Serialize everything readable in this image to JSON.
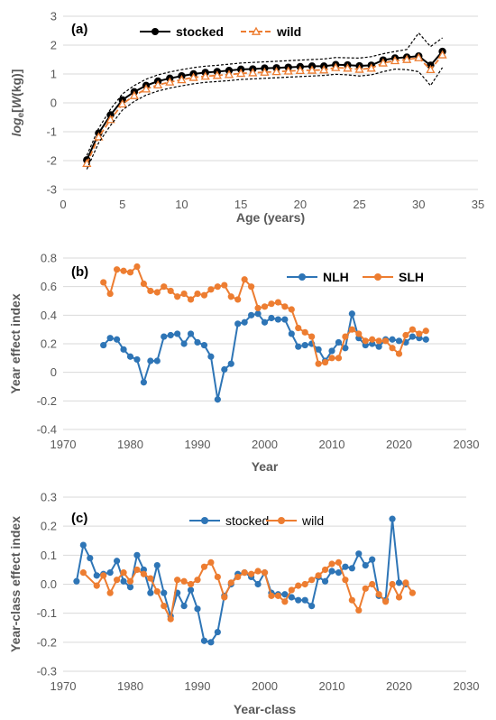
{
  "chart_data": [
    {
      "id": "a",
      "type": "line",
      "panel_label": "(a)",
      "xlabel": "Age (years)",
      "ylabel_parts": [
        "log",
        "e",
        "[",
        "W",
        "(kg)]"
      ],
      "xlim": [
        0,
        35
      ],
      "ylim": [
        -3,
        3
      ],
      "xticks": [
        0,
        5,
        10,
        15,
        20,
        25,
        30,
        35
      ],
      "yticks": [
        -3,
        -2,
        -1,
        0,
        1,
        2,
        3
      ],
      "legend_position": "top-center",
      "colors": {
        "stocked": "#000000",
        "wild": "#ED7D31",
        "band": "#000000"
      },
      "x": [
        2,
        3,
        4,
        5,
        6,
        7,
        8,
        9,
        10,
        11,
        12,
        13,
        14,
        15,
        16,
        17,
        18,
        19,
        20,
        21,
        22,
        23,
        24,
        25,
        26,
        27,
        28,
        29,
        30,
        31,
        32
      ],
      "series": [
        {
          "name": "stocked",
          "marker": "circle",
          "line": "solid",
          "values": [
            -1.98,
            -1.05,
            -0.42,
            0.1,
            0.38,
            0.6,
            0.75,
            0.85,
            0.93,
            1.0,
            1.05,
            1.08,
            1.12,
            1.16,
            1.17,
            1.2,
            1.21,
            1.23,
            1.25,
            1.27,
            1.27,
            1.32,
            1.31,
            1.28,
            1.3,
            1.48,
            1.55,
            1.58,
            1.62,
            1.3,
            1.78
          ]
        },
        {
          "name": "wild",
          "marker": "triangle",
          "line": "dashed",
          "values": [
            -2.1,
            -1.18,
            -0.58,
            -0.04,
            0.25,
            0.48,
            0.62,
            0.72,
            0.8,
            0.88,
            0.92,
            0.95,
            0.98,
            1.02,
            1.04,
            1.06,
            1.08,
            1.1,
            1.12,
            1.13,
            1.14,
            1.22,
            1.2,
            1.16,
            1.2,
            1.38,
            1.46,
            1.5,
            1.56,
            1.15,
            1.66
          ]
        },
        {
          "name": "upper band",
          "line": "dashed-thin",
          "values": [
            -1.82,
            -0.88,
            -0.22,
            0.31,
            0.6,
            0.82,
            0.97,
            1.07,
            1.15,
            1.22,
            1.27,
            1.3,
            1.34,
            1.38,
            1.4,
            1.42,
            1.44,
            1.46,
            1.48,
            1.5,
            1.52,
            1.57,
            1.56,
            1.55,
            1.6,
            1.7,
            1.78,
            1.85,
            2.42,
            1.95,
            2.25
          ]
        },
        {
          "name": "lower band",
          "line": "dashed-thin",
          "values": [
            -2.3,
            -1.38,
            -0.78,
            -0.25,
            0.05,
            0.27,
            0.41,
            0.51,
            0.59,
            0.66,
            0.71,
            0.74,
            0.77,
            0.81,
            0.83,
            0.85,
            0.87,
            0.89,
            0.91,
            0.93,
            0.95,
            0.99,
            0.97,
            0.93,
            0.97,
            1.08,
            1.17,
            1.15,
            1.08,
            0.6,
            1.22
          ]
        }
      ]
    },
    {
      "id": "b",
      "type": "line",
      "panel_label": "(b)",
      "xlabel": "Year",
      "ylabel": "Year effect index",
      "xlim": [
        1970,
        2030
      ],
      "ylim": [
        -0.4,
        0.8
      ],
      "xticks": [
        1970,
        1980,
        1990,
        2000,
        2010,
        2020,
        2030
      ],
      "yticks": [
        -0.4,
        -0.2,
        0,
        0.2,
        0.4,
        0.6,
        0.8
      ],
      "legend_position": "top-right",
      "colors": {
        "NLH": "#2E75B6",
        "SLH": "#ED7D31"
      },
      "x": [
        1976,
        1977,
        1978,
        1979,
        1980,
        1981,
        1982,
        1983,
        1984,
        1985,
        1986,
        1987,
        1988,
        1989,
        1990,
        1991,
        1992,
        1993,
        1994,
        1995,
        1996,
        1997,
        1998,
        1999,
        2000,
        2001,
        2002,
        2003,
        2004,
        2005,
        2006,
        2007,
        2008,
        2009,
        2010,
        2011,
        2012,
        2013,
        2014,
        2015,
        2016,
        2017,
        2018,
        2019,
        2020,
        2021,
        2022,
        2023,
        2024
      ],
      "series": [
        {
          "name": "NLH",
          "values": [
            0.19,
            0.24,
            0.23,
            0.16,
            0.11,
            0.09,
            -0.07,
            0.08,
            0.08,
            0.25,
            0.26,
            0.27,
            0.2,
            0.27,
            0.21,
            0.19,
            0.11,
            -0.19,
            0.02,
            0.06,
            0.34,
            0.35,
            0.4,
            0.41,
            0.35,
            0.38,
            0.37,
            0.37,
            0.27,
            0.18,
            0.19,
            0.2,
            0.16,
            0.08,
            0.15,
            0.21,
            0.17,
            0.41,
            0.24,
            0.19,
            0.2,
            0.18,
            0.23,
            0.23,
            0.22,
            0.21,
            0.25,
            0.24,
            0.23
          ]
        },
        {
          "name": "SLH",
          "values": [
            0.63,
            0.55,
            0.72,
            0.71,
            0.7,
            0.74,
            0.62,
            0.57,
            0.56,
            0.6,
            0.57,
            0.53,
            0.55,
            0.51,
            0.55,
            0.54,
            0.58,
            0.6,
            0.61,
            0.53,
            0.51,
            0.65,
            0.6,
            0.45,
            0.46,
            0.48,
            0.49,
            0.46,
            0.44,
            0.31,
            0.28,
            0.25,
            0.06,
            0.07,
            0.1,
            0.1,
            0.25,
            0.3,
            0.27,
            0.22,
            0.23,
            0.22,
            0.22,
            0.17,
            0.13,
            0.26,
            0.3,
            0.27,
            0.29
          ]
        }
      ]
    },
    {
      "id": "c",
      "type": "line",
      "panel_label": "(c)",
      "xlabel": "Year-class",
      "ylabel": "Year-class effect index",
      "xlim": [
        1970,
        2030
      ],
      "ylim": [
        -0.3,
        0.3
      ],
      "xticks": [
        1970,
        1980,
        1990,
        2000,
        2010,
        2020,
        2030
      ],
      "yticks": [
        -0.3,
        -0.2,
        -0.1,
        0.0,
        0.1,
        0.2,
        0.3
      ],
      "ytick_labels": [
        "-0.3",
        "-0.2",
        "-0.1",
        "0.0",
        "0.1",
        "0.2",
        "0.3"
      ],
      "legend_position": "top-center",
      "colors": {
        "stocked": "#2E75B6",
        "wild": "#ED7D31"
      },
      "series": [
        {
          "name": "stocked",
          "x": [
            1972,
            1973,
            1974,
            1975,
            1976,
            1977,
            1978,
            1979,
            1980,
            1981,
            1982,
            1983,
            1984,
            1985,
            1986,
            1987,
            1988,
            1989,
            1990,
            1991,
            1992,
            1993,
            1994,
            1995,
            1996,
            1997,
            1998,
            1999,
            2000,
            2001,
            2002,
            2003,
            2004,
            2005,
            2006,
            2007,
            2008,
            2009,
            2010,
            2011,
            2012,
            2013,
            2014,
            2015,
            2016,
            2017,
            2018,
            2019,
            2020,
            2021
          ],
          "values": [
            0.01,
            0.135,
            0.09,
            0.03,
            0.035,
            0.04,
            0.08,
            0.01,
            -0.01,
            0.1,
            0.05,
            -0.03,
            0.065,
            -0.03,
            -0.11,
            -0.03,
            -0.075,
            -0.02,
            -0.085,
            -0.195,
            -0.2,
            -0.165,
            -0.04,
            0.0,
            0.035,
            0.04,
            0.025,
            0.0,
            0.04,
            -0.03,
            -0.035,
            -0.035,
            -0.045,
            -0.055,
            -0.055,
            -0.075,
            0.025,
            0.01,
            0.045,
            0.04,
            0.06,
            0.055,
            0.105,
            0.065,
            0.085,
            -0.04,
            -0.055,
            0.225,
            0.005,
            0.0
          ]
        },
        {
          "name": "wild",
          "x": [
            1973,
            1975,
            1976,
            1977,
            1978,
            1979,
            1980,
            1981,
            1982,
            1983,
            1984,
            1985,
            1986,
            1987,
            1988,
            1989,
            1990,
            1991,
            1992,
            1993,
            1994,
            1995,
            1996,
            1997,
            1998,
            1999,
            2000,
            2001,
            2002,
            2003,
            2004,
            2005,
            2006,
            2007,
            2008,
            2009,
            2010,
            2011,
            2012,
            2013,
            2014,
            2015,
            2016,
            2017,
            2018,
            2019,
            2020,
            2021,
            2022
          ],
          "values": [
            0.04,
            -0.005,
            0.03,
            -0.03,
            0.015,
            0.04,
            0.01,
            0.05,
            0.035,
            0.02,
            -0.025,
            -0.075,
            -0.12,
            0.015,
            0.01,
            0.0,
            0.015,
            0.06,
            0.075,
            0.025,
            -0.045,
            0.005,
            0.025,
            0.04,
            0.035,
            0.045,
            0.04,
            -0.04,
            -0.04,
            -0.06,
            -0.02,
            -0.005,
            0.0,
            0.015,
            0.03,
            0.05,
            0.07,
            0.075,
            0.015,
            -0.055,
            -0.09,
            -0.015,
            0.0,
            -0.035,
            -0.06,
            0.0,
            -0.045,
            0.005,
            -0.03
          ]
        }
      ]
    }
  ]
}
